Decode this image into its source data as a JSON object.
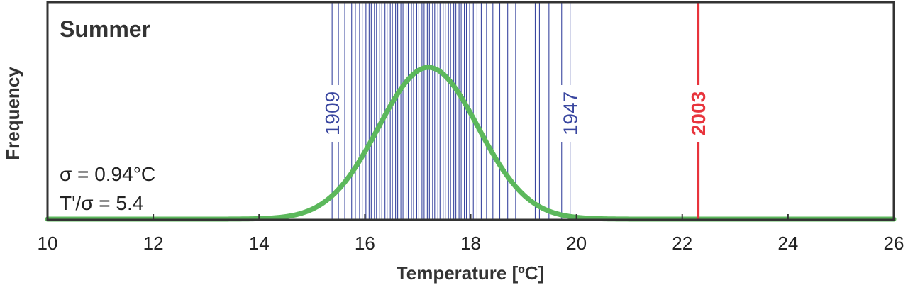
{
  "chart_data": {
    "type": "line",
    "title": "Summer",
    "xlabel": "Temperature [ºC]",
    "ylabel": "Frequency",
    "xlim": [
      10,
      26
    ],
    "x_ticks": [
      10,
      12,
      14,
      16,
      18,
      20,
      22,
      24,
      26
    ],
    "y_ticks_shown": false,
    "grid": false,
    "annotations": {
      "sigma": "σ = 0.94°C",
      "ratio": "T'/σ = 5.4"
    },
    "distribution": {
      "shape": "gaussian",
      "mean": 17.2,
      "sigma": 0.94,
      "color": "#5cb85c"
    },
    "yearly_temperatures": {
      "color": "#3a47a0",
      "values": [
        15.38,
        15.5,
        15.62,
        15.75,
        15.82,
        15.9,
        15.95,
        16.02,
        16.08,
        16.12,
        16.18,
        16.22,
        16.28,
        16.32,
        16.38,
        16.42,
        16.48,
        16.52,
        16.58,
        16.62,
        16.68,
        16.72,
        16.78,
        16.82,
        16.88,
        16.92,
        16.98,
        17.02,
        17.08,
        17.12,
        17.18,
        17.22,
        17.28,
        17.32,
        17.38,
        17.42,
        17.48,
        17.52,
        17.58,
        17.62,
        17.68,
        17.72,
        17.78,
        17.82,
        17.88,
        17.92,
        17.98,
        18.05,
        18.12,
        18.2,
        18.3,
        18.42,
        18.55,
        18.7,
        18.85,
        19.22,
        19.3,
        19.48,
        19.72,
        19.88
      ]
    },
    "labeled_years": [
      {
        "year": "1909",
        "temperature": 15.38,
        "color": "#3a47a0"
      },
      {
        "year": "1947",
        "temperature": 19.88,
        "color": "#3a47a0"
      },
      {
        "year": "2003",
        "temperature": 22.3,
        "color": "#e8343c"
      }
    ]
  }
}
